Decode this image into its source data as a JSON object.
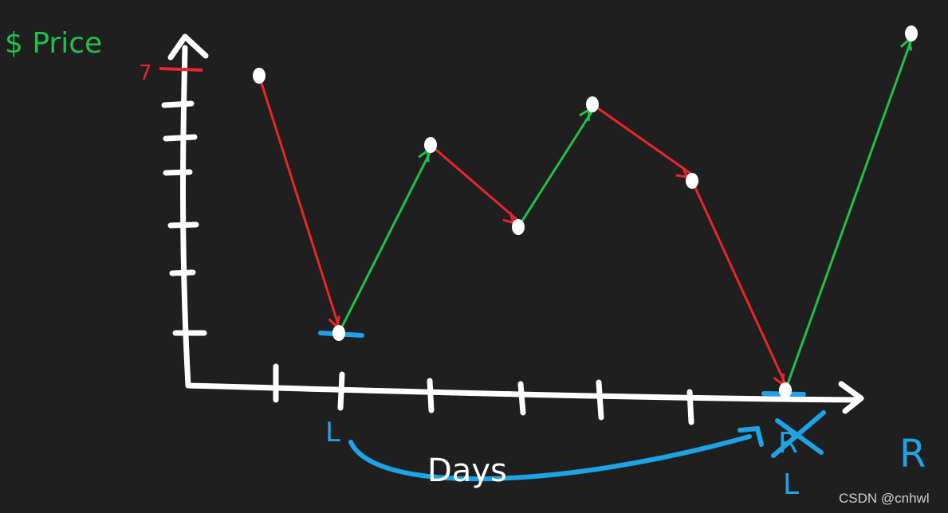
{
  "labels": {
    "y_axis": "$ Price",
    "top_tick": "7",
    "x_axis": "Days",
    "left_pointer_1": "L",
    "right_pointer_crossed": "R",
    "left_pointer_2": "L",
    "right_pointer": "R"
  },
  "colors": {
    "background": "#1f1f1f",
    "axes": "#ffffff",
    "decrease": "#e8262b",
    "increase": "#22c04a",
    "pointer": "#1ea3e6",
    "price_label": "#22c04a"
  },
  "watermark": "CSDN @cnhwl"
}
